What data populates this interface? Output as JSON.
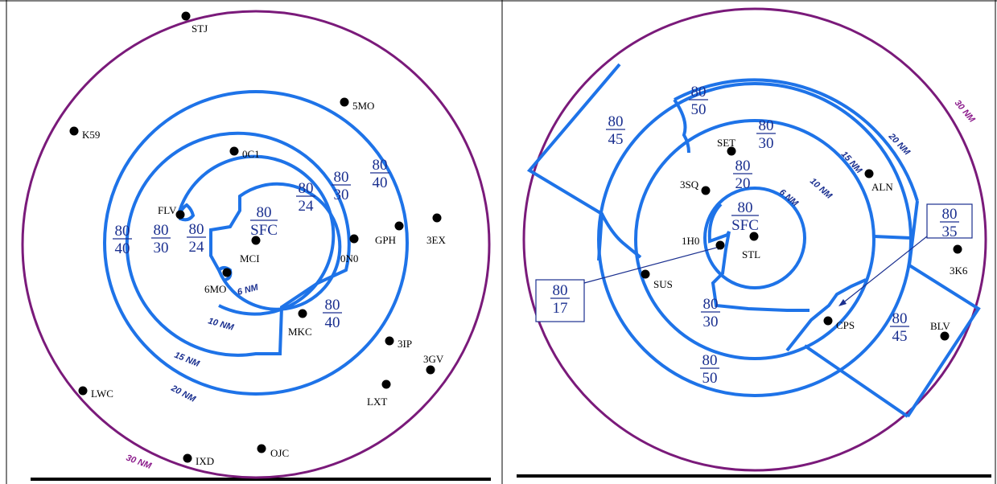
{
  "colors": {
    "ring": "#1e73e8",
    "outer_ring": "#7a1a7a",
    "label_blue": "#1a2f8f",
    "divider": "#000000"
  },
  "left_map": {
    "center_airport": "MCI",
    "airports": [
      {
        "id": "STJ",
        "name": "STJ"
      },
      {
        "id": "5MO",
        "name": "5MO"
      },
      {
        "id": "K59",
        "name": "K59"
      },
      {
        "id": "0C1",
        "name": "0C1"
      },
      {
        "id": "FLV",
        "name": "FLV"
      },
      {
        "id": "GPH",
        "name": "GPH"
      },
      {
        "id": "3EX",
        "name": "3EX"
      },
      {
        "id": "0N0",
        "name": "0N0"
      },
      {
        "id": "MCI",
        "name": "MCI"
      },
      {
        "id": "6MO",
        "name": "6MO"
      },
      {
        "id": "MKC",
        "name": "MKC"
      },
      {
        "id": "3IP",
        "name": "3IP"
      },
      {
        "id": "3GV",
        "name": "3GV"
      },
      {
        "id": "LWC",
        "name": "LWC"
      },
      {
        "id": "LXT",
        "name": "LXT"
      },
      {
        "id": "IXD",
        "name": "IXD"
      },
      {
        "id": "OJC",
        "name": "OJC"
      }
    ],
    "altitude_labels": [
      {
        "top": "80",
        "bottom": "SFC"
      },
      {
        "top": "80",
        "bottom": "24"
      },
      {
        "top": "80",
        "bottom": "24"
      },
      {
        "top": "80",
        "bottom": "30"
      },
      {
        "top": "80",
        "bottom": "30"
      },
      {
        "top": "80",
        "bottom": "40"
      },
      {
        "top": "80",
        "bottom": "40"
      },
      {
        "top": "80",
        "bottom": "40"
      }
    ],
    "ring_labels": [
      "6 NM",
      "10 NM",
      "15 NM",
      "20 NM",
      "30 NM"
    ]
  },
  "right_map": {
    "center_airport": "STL",
    "airports": [
      {
        "id": "SET",
        "name": "SET"
      },
      {
        "id": "ALN",
        "name": "ALN"
      },
      {
        "id": "3SQ",
        "name": "3SQ"
      },
      {
        "id": "1H0",
        "name": "1H0"
      },
      {
        "id": "STL",
        "name": "STL"
      },
      {
        "id": "SUS",
        "name": "SUS"
      },
      {
        "id": "3K6",
        "name": "3K6"
      },
      {
        "id": "CPS",
        "name": "CPS"
      },
      {
        "id": "BLV",
        "name": "BLV"
      }
    ],
    "altitude_labels": [
      {
        "top": "80",
        "bottom": "SFC"
      },
      {
        "top": "80",
        "bottom": "20"
      },
      {
        "top": "80",
        "bottom": "30"
      },
      {
        "top": "80",
        "bottom": "50"
      },
      {
        "top": "80",
        "bottom": "45"
      },
      {
        "top": "80",
        "bottom": "30"
      },
      {
        "top": "80",
        "bottom": "50"
      },
      {
        "top": "80",
        "bottom": "45"
      }
    ],
    "callouts": [
      {
        "top": "80",
        "bottom": "17"
      },
      {
        "top": "80",
        "bottom": "35"
      }
    ],
    "ring_labels": [
      "6 NM",
      "10 NM",
      "15 NM",
      "20 NM",
      "30 NM"
    ]
  }
}
